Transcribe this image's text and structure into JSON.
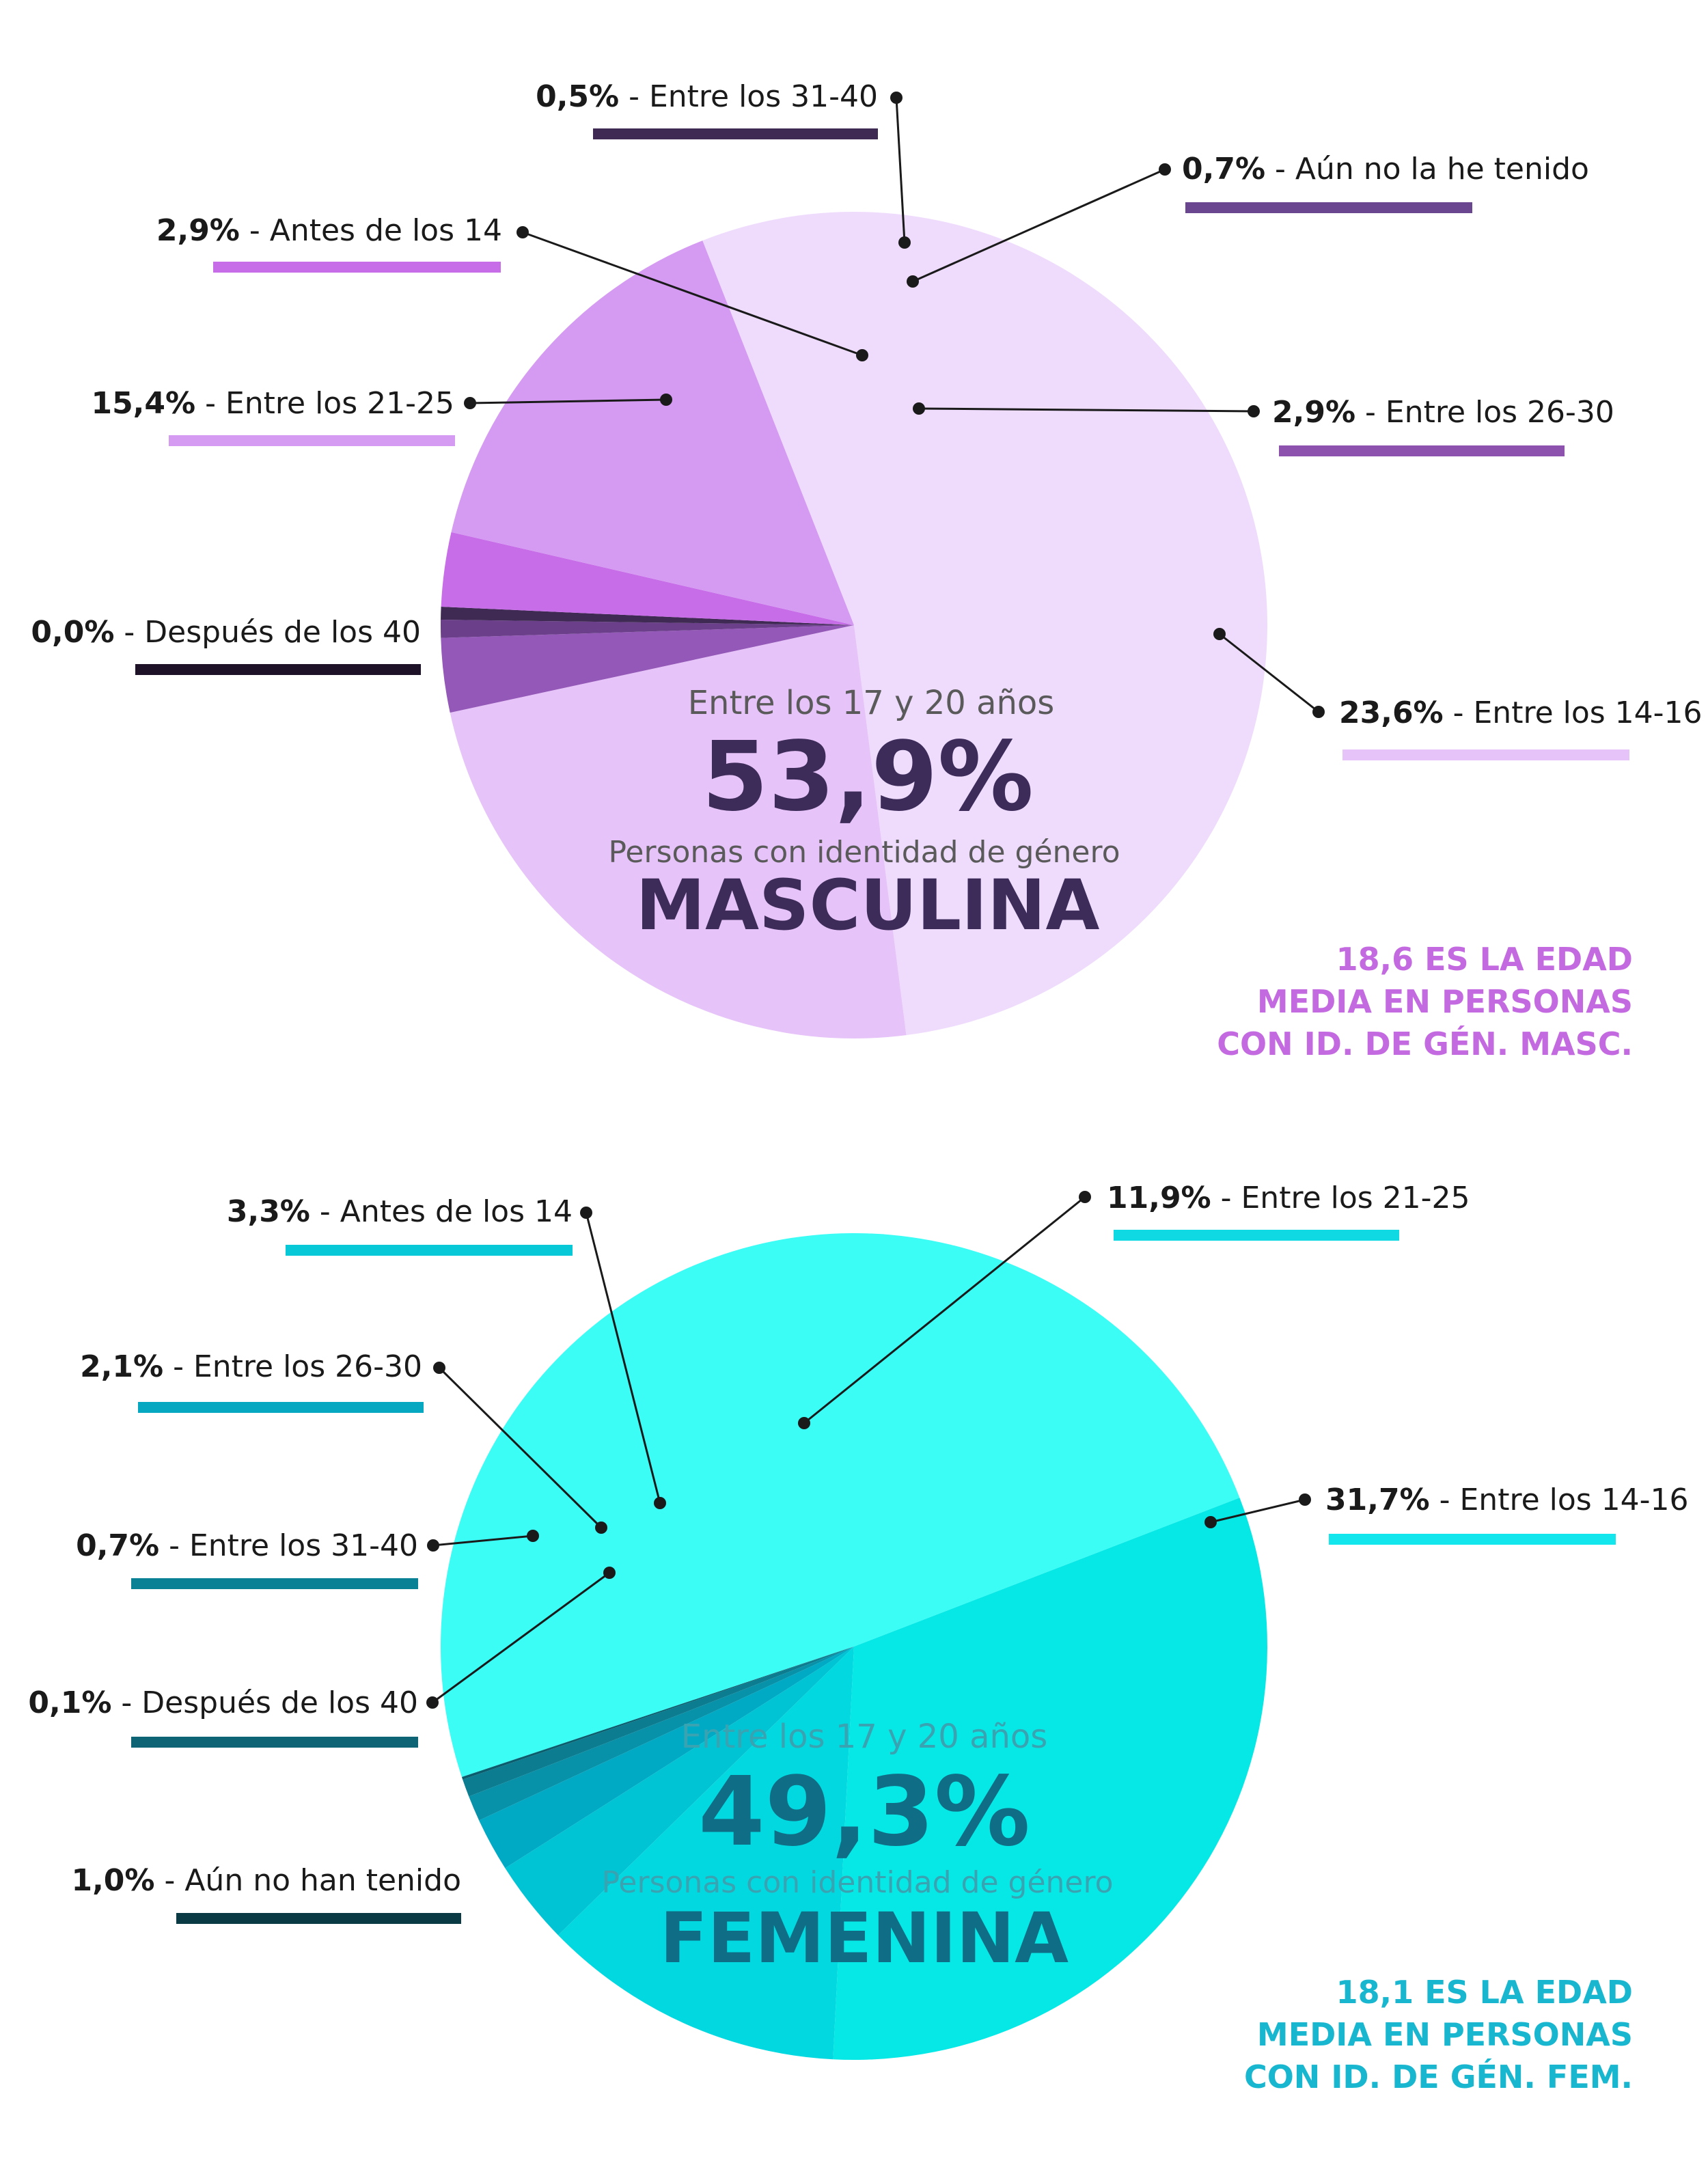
{
  "chart_data": [
    {
      "type": "pie",
      "title": "MASCULINA",
      "subtitle": "Personas con identidad de género",
      "center_caption": "Entre los 17 y 20 años",
      "center_value": "53,9%",
      "note_lines": [
        "18,6 ES LA EDAD",
        "MEDIA EN PERSONAS",
        "CON ID. DE GÉN. MASC."
      ],
      "note_color": "#c46ae0",
      "text_color": "#3d2c5a",
      "subtitle_color": "#5a5a5a",
      "slices": [
        {
          "label": "Entre los 17-20",
          "value": 53.9,
          "color": "#efdcfd",
          "callout": false
        },
        {
          "label": "Entre los 14-16",
          "value": 23.6,
          "color": "#e6c3f8",
          "callout": true,
          "value_text": "23,6%",
          "label_text": "Entre los 14-16",
          "bar_color": "#e6c3f8"
        },
        {
          "label": "Entre los 26-30",
          "value": 2.9,
          "color": "#9458b8",
          "callout": true,
          "value_text": "2,9%",
          "label_text": "Entre los 26-30",
          "bar_color": "#8c52ae"
        },
        {
          "label": "Aún no la he tenido",
          "value": 0.7,
          "color": "#6b3f8a",
          "callout": true,
          "value_text": "0,7%",
          "label_text": "Aún no la he tenido",
          "bar_color": "#6b4690"
        },
        {
          "label": "Entre los 31-40",
          "value": 0.5,
          "color": "#3e2a52",
          "callout": true,
          "value_text": "0,5%",
          "label_text": "Entre los 31-40",
          "bar_color": "#3e2a52"
        },
        {
          "label": "Antes de los 14",
          "value": 2.9,
          "color": "#c86de8",
          "callout": true,
          "value_text": "2,9%",
          "label_text": "Antes de los 14",
          "bar_color": "#c86de8"
        },
        {
          "label": "Entre los 21-25",
          "value": 15.4,
          "color": "#d59bf2",
          "callout": true,
          "value_text": "15,4%",
          "label_text": "Entre los 21-25",
          "bar_color": "#d59bf2"
        },
        {
          "label": "Después de los 40",
          "value": 0.0,
          "color": "#1e1228",
          "callout": true,
          "value_text": "0,0%",
          "label_text": "Después de los 40",
          "bar_color": "#1e1228"
        }
      ]
    },
    {
      "type": "pie",
      "title": "FEMENINA",
      "subtitle": "Personas con identidad de género",
      "center_caption": "Entre los 17 y 20 años",
      "center_value": "49,3%",
      "note_lines": [
        "18,1 ES LA EDAD",
        "MEDIA EN PERSONAS",
        "CON ID. DE GÉN. FEM."
      ],
      "note_color": "#18b7cf",
      "text_color": "#0f6e86",
      "subtitle_color": "#3aa3b2",
      "slices": [
        {
          "label": "Entre los 17-20",
          "value": 49.3,
          "color": "#3bfdf6",
          "callout": false
        },
        {
          "label": "Entre los 14-16",
          "value": 31.7,
          "color": "#06e8e6",
          "callout": true,
          "value_text": "31,7%",
          "label_text": "Entre los 14-16",
          "bar_color": "#13e6ec"
        },
        {
          "label": "Entre los 21-25",
          "value": 11.9,
          "color": "#02d8e0",
          "callout": true,
          "value_text": "11,9%",
          "label_text": "Entre los 21-25",
          "bar_color": "#0fd9e2"
        },
        {
          "label": "Antes de los 14",
          "value": 3.3,
          "color": "#00c4d4",
          "callout": true,
          "value_text": "3,3%",
          "label_text": "Antes de los 14",
          "bar_color": "#07c8d6"
        },
        {
          "label": "Entre los 26-30",
          "value": 2.1,
          "color": "#00aac4",
          "callout": true,
          "value_text": "2,1%",
          "label_text": "Entre los 26-30",
          "bar_color": "#06a7c0"
        },
        {
          "label": "Aún no han tenido",
          "value": 1.0,
          "color": "#0792aa",
          "callout": true,
          "value_text": "1,0%",
          "label_text": "Aún no han tenido",
          "bar_color": "#0a3a44"
        },
        {
          "label": "Entre los 31-40",
          "value": 0.7,
          "color": "#0c7d90",
          "callout": true,
          "value_text": "0,7%",
          "label_text": "Entre los 31-40",
          "bar_color": "#0a8194"
        },
        {
          "label": "Después de los 40",
          "value": 0.1,
          "color": "#0b5c6c",
          "callout": true,
          "value_text": "0,1%",
          "label_text": "Después de los 40",
          "bar_color": "#0e6474"
        }
      ]
    }
  ]
}
